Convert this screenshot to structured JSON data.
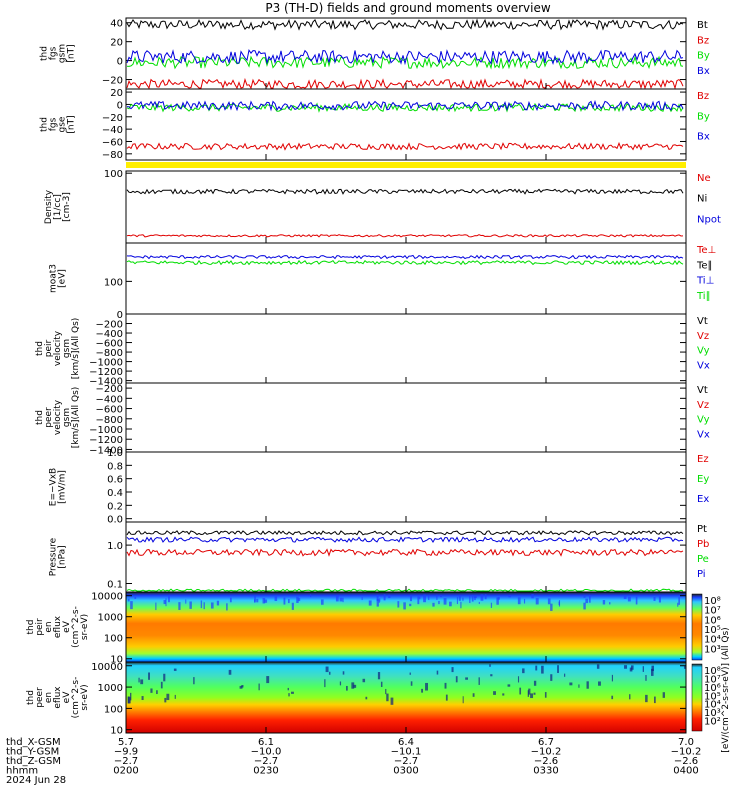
{
  "title": "P3 (TH-D) fields and ground moments overview",
  "colors": {
    "black": "#000000",
    "red": "#e00000",
    "green": "#00dd00",
    "blue": "#0000dd",
    "yellow": "#ffee00"
  },
  "chart_data": [
    {
      "type": "line",
      "id": "fgs_gsm",
      "ylabel": [
        "thd",
        "fgs",
        "gsm",
        "[nT]"
      ],
      "ylim": [
        -30,
        45
      ],
      "yticks": [
        "40",
        "20",
        "0",
        "−20"
      ],
      "yticks_values": [
        40,
        20,
        0,
        -20
      ],
      "series": [
        {
          "name": "Bt",
          "color": "black",
          "level": 38,
          "noise": 5
        },
        {
          "name": "Bz",
          "color": "red",
          "level": -25,
          "noise": 5
        },
        {
          "name": "By",
          "color": "green",
          "level": -2,
          "noise": 6
        },
        {
          "name": "Bx",
          "color": "blue",
          "level": 4,
          "noise": 7
        }
      ]
    },
    {
      "type": "line",
      "id": "fgs_gse",
      "ylabel": [
        "thd",
        "fgs",
        "gse",
        "[nT]"
      ],
      "ylim": [
        -90,
        25
      ],
      "yticks": [
        "20",
        "0",
        "−20",
        "−40",
        "−60",
        "−80"
      ],
      "yticks_values": [
        20,
        0,
        -20,
        -40,
        -60,
        -80
      ],
      "series": [
        {
          "name": "Bz",
          "color": "red",
          "level": -68,
          "noise": 5
        },
        {
          "name": "By",
          "color": "green",
          "level": -5,
          "noise": 6
        },
        {
          "name": "Bx",
          "color": "blue",
          "level": -2,
          "noise": 7
        }
      ]
    },
    {
      "type": "line",
      "id": "density",
      "ylabel": [
        "Density",
        "[1/cc]",
        "[cm-3]"
      ],
      "log": true,
      "ylim": [
        0.3,
        120
      ],
      "yticks": [
        "100"
      ],
      "yticks_values": [
        100
      ],
      "series": [
        {
          "name": "Ne",
          "color": "red",
          "level": 0.55,
          "noise": 0.05
        },
        {
          "name": "Ni",
          "color": "black",
          "level": 22,
          "noise": 4
        },
        {
          "name": "Npot",
          "color": "blue",
          "level": null,
          "noise": 0
        }
      ]
    },
    {
      "type": "line",
      "id": "temp",
      "ylabel": [
        "moat3",
        "[eV]"
      ],
      "log": true,
      "ylim": [
        10,
        1500
      ],
      "yticks": [
        "100"
      ],
      "yticks_values": [
        100
      ],
      "series": [
        {
          "name": "Te⊥",
          "color": "red",
          "level": null,
          "noise": 0
        },
        {
          "name": "Te∥",
          "color": "black",
          "level": null,
          "noise": 0
        },
        {
          "name": "Ti⊥",
          "color": "blue",
          "level": 560,
          "noise": 60
        },
        {
          "name": "Ti∥",
          "color": "green",
          "level": 380,
          "noise": 50
        }
      ]
    },
    {
      "type": "line",
      "id": "peir_vel",
      "ylabel": [
        "thd",
        "peir",
        "velocity",
        "gsm",
        "[km/s](All Qs)"
      ],
      "ylim": [
        -1450,
        0
      ],
      "yticks": [
        "0",
        "−200",
        "−400",
        "−600",
        "−800",
        "−1000",
        "−1200",
        "−1400"
      ],
      "yticks_values": [
        0,
        -200,
        -400,
        -600,
        -800,
        -1000,
        -1200,
        -1400
      ],
      "series": [
        {
          "name": "Vt",
          "color": "black"
        },
        {
          "name": "Vz",
          "color": "red"
        },
        {
          "name": "Vy",
          "color": "green"
        },
        {
          "name": "Vx",
          "color": "blue"
        }
      ]
    },
    {
      "type": "line",
      "id": "peer_vel",
      "ylabel": [
        "thd",
        "peer",
        "velocity",
        "gsm",
        "[km/s](All Qs)"
      ],
      "ylim": [
        -1450,
        -100
      ],
      "yticks": [
        "−200",
        "−400",
        "−600",
        "−800",
        "−1000",
        "−1200",
        "−1400"
      ],
      "yticks_values": [
        -200,
        -400,
        -600,
        -800,
        -1000,
        -1200,
        -1400
      ],
      "series": [
        {
          "name": "Vt",
          "color": "black"
        },
        {
          "name": "Vz",
          "color": "red"
        },
        {
          "name": "Vy",
          "color": "green"
        },
        {
          "name": "Vx",
          "color": "blue"
        }
      ]
    },
    {
      "type": "line",
      "id": "efield",
      "ylabel": [
        "E=−VxB",
        "[mV/m]"
      ],
      "ylim": [
        -0.05,
        1.0
      ],
      "yticks": [
        "1.0",
        "0.8",
        "0.6",
        "0.4",
        "0.2",
        "0.0"
      ],
      "yticks_values": [
        1.0,
        0.8,
        0.6,
        0.4,
        0.2,
        0.0
      ],
      "series": [
        {
          "name": "Ez",
          "color": "red"
        },
        {
          "name": "Ey",
          "color": "green"
        },
        {
          "name": "Ex",
          "color": "blue"
        }
      ]
    },
    {
      "type": "line",
      "id": "pressure",
      "ylabel": [
        "Pressure",
        "[nPa]"
      ],
      "log": true,
      "ylim": [
        0.06,
        4
      ],
      "yticks": [
        "1.0",
        "0.1"
      ],
      "yticks_values": [
        1.0,
        0.1
      ],
      "series": [
        {
          "name": "Pt",
          "color": "black",
          "level": 2.1,
          "noise": 0.25
        },
        {
          "name": "Pb",
          "color": "red",
          "level": 0.65,
          "noise": 0.12
        },
        {
          "name": "Pe",
          "color": "green",
          "level": 0.065,
          "noise": 0.006
        },
        {
          "name": "Pi",
          "color": "blue",
          "level": 1.4,
          "noise": 0.2
        }
      ]
    },
    {
      "type": "heatmap",
      "id": "peir_spec",
      "ylabel": [
        "thd",
        "peir",
        "en",
        "eflux",
        "eV",
        "(cm^2-s-",
        "sr-eV)"
      ],
      "log": true,
      "ylim": [
        7,
        15000
      ],
      "yticks": [
        "10000",
        "1000",
        "100",
        "10"
      ],
      "yticks_values": [
        10000,
        1000,
        100,
        10
      ],
      "colorbar": {
        "ticks": [
          "10⁸",
          "10⁷",
          "10⁶",
          "10⁵",
          "10⁴",
          "10³"
        ],
        "label": "[eV/(cm^2-s-sr-eV)]"
      }
    },
    {
      "type": "heatmap",
      "id": "peer_spec",
      "ylabel": [
        "thd",
        "peer",
        "en",
        "eflux",
        "eV",
        "(cm^2-s-",
        "sr-eV)"
      ],
      "log": true,
      "ylim": [
        7,
        15000
      ],
      "yticks": [
        "10000",
        "1000",
        "100",
        "10"
      ],
      "yticks_values": [
        10000,
        1000,
        100,
        10
      ],
      "colorbar": {
        "ticks": [
          "10⁸",
          "10⁷",
          "10⁶",
          "10⁵",
          "10⁴",
          "10³",
          "10²"
        ],
        "label": "[eV/(cm^2-s-sr-eV)]"
      }
    }
  ],
  "colorbar_label": "[eV/(cm^2-s-sr-eV)] (All Qs)",
  "x_axis": {
    "rows": [
      {
        "label": "thd_X-GSM",
        "values": [
          "5.7",
          "6.1",
          "6.4",
          "6.7",
          "7.0"
        ]
      },
      {
        "label": "thd_Y-GSM",
        "values": [
          "−9.9",
          "−10.0",
          "−10.1",
          "−10.2",
          "−10.2"
        ]
      },
      {
        "label": "thd_Z-GSM",
        "values": [
          "−2.7",
          "−2.7",
          "−2.7",
          "−2.6",
          "−2.6"
        ]
      },
      {
        "label": "hhmm",
        "values": [
          "0200",
          "0230",
          "0300",
          "0330",
          "0400"
        ]
      }
    ],
    "date": "2024 Jun 28"
  }
}
